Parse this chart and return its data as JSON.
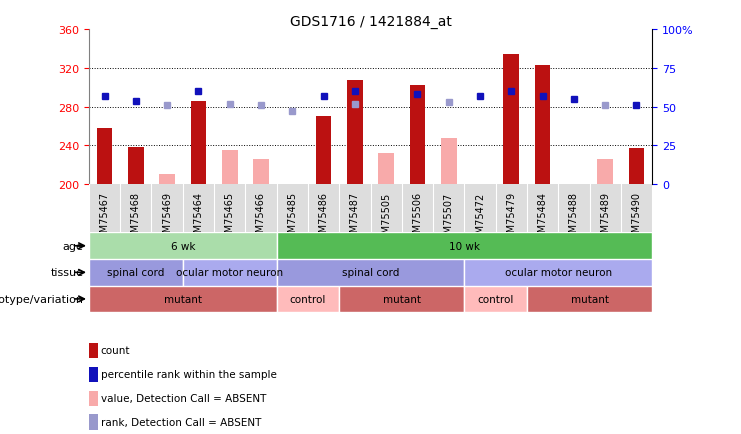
{
  "title": "GDS1716 / 1421884_at",
  "samples": [
    "GSM75467",
    "GSM75468",
    "GSM75469",
    "GSM75464",
    "GSM75465",
    "GSM75466",
    "GSM75485",
    "GSM75486",
    "GSM75487",
    "GSM75505",
    "GSM75506",
    "GSM75507",
    "GSM75472",
    "GSM75479",
    "GSM75484",
    "GSM75488",
    "GSM75489",
    "GSM75490"
  ],
  "count_values": [
    258,
    238,
    null,
    286,
    null,
    null,
    null,
    270,
    308,
    null,
    303,
    null,
    null,
    335,
    323,
    null,
    null,
    237
  ],
  "absent_values": [
    null,
    null,
    210,
    null,
    235,
    226,
    null,
    null,
    null,
    232,
    null,
    248,
    null,
    null,
    null,
    null,
    226,
    null
  ],
  "rank_values": [
    57,
    54,
    null,
    60,
    null,
    null,
    null,
    57,
    60,
    null,
    58,
    null,
    57,
    60,
    57,
    55,
    null,
    51
  ],
  "absent_rank_values": [
    null,
    null,
    51,
    null,
    52,
    51,
    47,
    null,
    52,
    null,
    null,
    53,
    null,
    null,
    null,
    null,
    51,
    null
  ],
  "ylim_left": [
    200,
    360
  ],
  "ylim_right": [
    0,
    100
  ],
  "yticks_left": [
    200,
    240,
    280,
    320,
    360
  ],
  "yticks_right": [
    0,
    25,
    50,
    75,
    100
  ],
  "bar_color_red": "#bb1111",
  "bar_color_pink": "#f8aaaa",
  "rank_color_blue": "#1111bb",
  "rank_color_lightblue": "#9999cc",
  "age_groups": [
    {
      "label": "6 wk",
      "start": 0,
      "end": 6,
      "color": "#aaddaa"
    },
    {
      "label": "10 wk",
      "start": 6,
      "end": 18,
      "color": "#55bb55"
    }
  ],
  "tissue_groups": [
    {
      "label": "spinal cord",
      "start": 0,
      "end": 3,
      "color": "#9999dd"
    },
    {
      "label": "ocular motor neuron",
      "start": 3,
      "end": 6,
      "color": "#aaaaee"
    },
    {
      "label": "spinal cord",
      "start": 6,
      "end": 12,
      "color": "#9999dd"
    },
    {
      "label": "ocular motor neuron",
      "start": 12,
      "end": 18,
      "color": "#aaaaee"
    }
  ],
  "genotype_groups": [
    {
      "label": "mutant",
      "start": 0,
      "end": 6,
      "color": "#cc6666"
    },
    {
      "label": "control",
      "start": 6,
      "end": 8,
      "color": "#ffbbbb"
    },
    {
      "label": "mutant",
      "start": 8,
      "end": 12,
      "color": "#cc6666"
    },
    {
      "label": "control",
      "start": 12,
      "end": 14,
      "color": "#ffbbbb"
    },
    {
      "label": "mutant",
      "start": 14,
      "end": 18,
      "color": "#cc6666"
    }
  ],
  "legend_items": [
    {
      "label": "count",
      "color": "#bb1111"
    },
    {
      "label": "percentile rank within the sample",
      "color": "#1111bb"
    },
    {
      "label": "value, Detection Call = ABSENT",
      "color": "#f8aaaa"
    },
    {
      "label": "rank, Detection Call = ABSENT",
      "color": "#9999cc"
    }
  ],
  "annotation_row_labels": [
    "age",
    "tissue",
    "genotype/variation"
  ],
  "xlabel_fontsize": 7,
  "title_fontsize": 10,
  "grid_color": "black",
  "grid_linestyle": "dotted",
  "grid_linewidth": 0.7,
  "bar_width": 0.5,
  "rank_markersize": 5
}
